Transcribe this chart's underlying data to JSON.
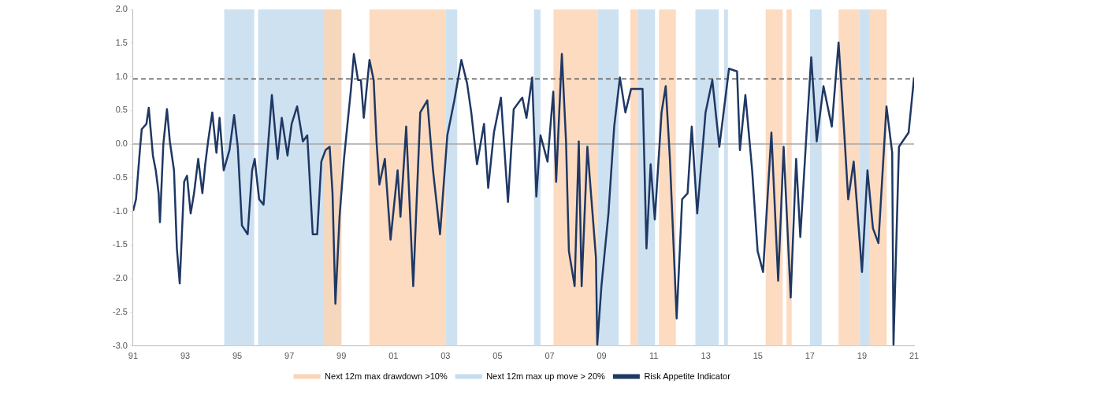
{
  "chart_data": {
    "type": "line",
    "legend": "bottom",
    "grid": false,
    "marker": "none",
    "line_style": "solid",
    "xlim": [
      1991,
      2021
    ],
    "ylim": [
      -3,
      2
    ],
    "xticks": [
      {
        "value": 1991,
        "label": "91"
      },
      {
        "value": 1993,
        "label": "93"
      },
      {
        "value": 1995,
        "label": "95"
      },
      {
        "value": 1997,
        "label": "97"
      },
      {
        "value": 1999,
        "label": "99"
      },
      {
        "value": 2001,
        "label": "01"
      },
      {
        "value": 2003,
        "label": "03"
      },
      {
        "value": 2005,
        "label": "05"
      },
      {
        "value": 2007,
        "label": "07"
      },
      {
        "value": 2009,
        "label": "09"
      },
      {
        "value": 2011,
        "label": "11"
      },
      {
        "value": 2013,
        "label": "13"
      },
      {
        "value": 2015,
        "label": "15"
      },
      {
        "value": 2017,
        "label": "17"
      },
      {
        "value": 2019,
        "label": "19"
      },
      {
        "value": 2021,
        "label": "21"
      }
    ],
    "yticks": [
      {
        "value": -3,
        "label": "-3.0"
      },
      {
        "value": -2.5,
        "label": "-2.5"
      },
      {
        "value": -2,
        "label": "-2.0"
      },
      {
        "value": -1.5,
        "label": "-1.5"
      },
      {
        "value": -1,
        "label": "-1.0"
      },
      {
        "value": -0.5,
        "label": "-0.5"
      },
      {
        "value": 0,
        "label": "0.0"
      },
      {
        "value": 0.5,
        "label": "0.5"
      },
      {
        "value": 1,
        "label": "1.0"
      },
      {
        "value": 1.5,
        "label": "1.5"
      },
      {
        "value": 2,
        "label": "2.0"
      }
    ],
    "bands": [
      {
        "axis": "x",
        "from": 2000.08,
        "to": 2003.0,
        "label": "Next 12m max drawdown >10%",
        "color": "#fbd5b5"
      },
      {
        "axis": "x",
        "from": 1994.5,
        "to": 1995.65,
        "label": "Next 12m max up move > 20%",
        "color": "#c5dcef"
      },
      {
        "axis": "x",
        "from": 1995.8,
        "to": 1999.0,
        "color": "#c5dcef"
      },
      {
        "axis": "x",
        "from": 1998.3,
        "to": 1999.0,
        "color": "#fbd5b5"
      },
      {
        "axis": "x",
        "from": 2003.0,
        "to": 2003.45,
        "color": "#c5dcef"
      },
      {
        "axis": "x",
        "from": 2006.4,
        "to": 2006.65,
        "color": "#c5dcef"
      },
      {
        "axis": "x",
        "from": 2007.15,
        "to": 2008.85,
        "color": "#fbd5b5"
      },
      {
        "axis": "x",
        "from": 2008.85,
        "to": 2009.65,
        "color": "#c5dcef"
      },
      {
        "axis": "x",
        "from": 2010.1,
        "to": 2010.4,
        "color": "#fbd5b5"
      },
      {
        "axis": "x",
        "from": 2010.4,
        "to": 2011.05,
        "color": "#c5dcef"
      },
      {
        "axis": "x",
        "from": 2011.2,
        "to": 2011.85,
        "color": "#fbd5b5"
      },
      {
        "axis": "x",
        "from": 2012.6,
        "to": 2013.5,
        "color": "#c5dcef"
      },
      {
        "axis": "x",
        "from": 2013.7,
        "to": 2013.85,
        "color": "#c5dcef"
      },
      {
        "axis": "x",
        "from": 2015.3,
        "to": 2015.95,
        "color": "#fbd5b5"
      },
      {
        "axis": "x",
        "from": 2016.1,
        "to": 2016.3,
        "color": "#fbd5b5"
      },
      {
        "axis": "x",
        "from": 2017.0,
        "to": 2017.45,
        "color": "#c5dcef"
      },
      {
        "axis": "x",
        "from": 2018.1,
        "to": 2018.9,
        "color": "#fbd5b5"
      },
      {
        "axis": "x",
        "from": 2018.9,
        "to": 2019.3,
        "color": "#c5dcef"
      },
      {
        "axis": "x",
        "from": 2019.3,
        "to": 2019.95,
        "color": "#fbd5b5"
      }
    ],
    "ref_lines": [
      {
        "axis": "y",
        "value": 0,
        "color": "#a6a6a6",
        "line_style": "solid"
      },
      {
        "axis": "y",
        "value": 0.97,
        "color": "#595959",
        "line_style": "dashed"
      }
    ],
    "series": [
      {
        "name": "Risk Appetite Indicator",
        "color": "#1f3864",
        "x": [
          1991.0,
          1991.11,
          1991.27,
          1991.33,
          1991.51,
          1991.6,
          1991.76,
          1991.87,
          1991.98,
          1992.03,
          1992.16,
          1992.3,
          1992.41,
          1992.57,
          1992.68,
          1992.79,
          1992.96,
          1993.07,
          1993.21,
          1993.34,
          1993.5,
          1993.66,
          1993.77,
          1993.88,
          1994.04,
          1994.2,
          1994.32,
          1994.48,
          1994.7,
          1994.88,
          1995.02,
          1995.18,
          1995.4,
          1995.57,
          1995.67,
          1995.84,
          1996.01,
          1996.33,
          1996.55,
          1996.71,
          1996.93,
          1997.09,
          1997.3,
          1997.52,
          1997.69,
          1997.9,
          1998.07,
          1998.23,
          1998.39,
          1998.55,
          1998.66,
          1998.77,
          1998.93,
          1999.1,
          1999.37,
          1999.48,
          1999.64,
          1999.75,
          1999.86,
          2000.08,
          2000.24,
          2000.35,
          2000.46,
          2000.67,
          2000.89,
          2001.16,
          2001.27,
          2001.49,
          2001.76,
          2002.03,
          2002.3,
          2002.52,
          2002.79,
          2003.07,
          2003.34,
          2003.61,
          2003.83,
          2003.99,
          2004.21,
          2004.48,
          2004.64,
          2004.86,
          2005.13,
          2005.4,
          2005.62,
          2005.95,
          2006.11,
          2006.33,
          2006.49,
          2006.65,
          2006.92,
          2007.14,
          2007.25,
          2007.47,
          2007.63,
          2007.74,
          2007.96,
          2008.12,
          2008.23,
          2008.45,
          2008.78,
          2008.83,
          2008.99,
          2009.26,
          2009.48,
          2009.7,
          2009.91,
          2010.13,
          2010.57,
          2010.72,
          2010.88,
          2011.04,
          2011.3,
          2011.46,
          2011.62,
          2011.88,
          2012.09,
          2012.3,
          2012.46,
          2012.67,
          2012.99,
          2013.25,
          2013.52,
          2013.89,
          2014.2,
          2014.31,
          2014.52,
          2014.78,
          2014.99,
          2015.2,
          2015.52,
          2015.78,
          2015.99,
          2016.26,
          2016.47,
          2016.63,
          2016.89,
          2017.05,
          2017.26,
          2017.52,
          2017.84,
          2018.1,
          2018.31,
          2018.47,
          2018.68,
          2019.0,
          2019.21,
          2019.42,
          2019.63,
          2019.94,
          2020.16,
          2020.21,
          2020.42,
          2020.79,
          2021.0
        ],
        "values": [
          -0.99,
          -0.82,
          -0.04,
          0.22,
          0.3,
          0.54,
          -0.17,
          -0.39,
          -0.73,
          -1.16,
          0.0,
          0.52,
          0.04,
          -0.39,
          -1.55,
          -2.07,
          -0.56,
          -0.47,
          -1.03,
          -0.73,
          -0.22,
          -0.73,
          -0.3,
          0.04,
          0.47,
          -0.13,
          0.39,
          -0.39,
          -0.09,
          0.43,
          -0.04,
          -1.21,
          -1.34,
          -0.39,
          -0.22,
          -0.82,
          -0.9,
          0.73,
          -0.22,
          0.39,
          -0.17,
          0.3,
          0.56,
          0.04,
          0.13,
          -1.34,
          -1.34,
          -0.26,
          -0.09,
          -0.04,
          -0.73,
          -2.37,
          -1.08,
          -0.22,
          0.82,
          1.34,
          0.95,
          0.95,
          0.39,
          1.25,
          0.95,
          0.04,
          -0.6,
          -0.22,
          -1.42,
          -0.39,
          -1.08,
          0.26,
          -2.11,
          0.47,
          0.65,
          -0.39,
          -1.34,
          0.13,
          0.65,
          1.25,
          0.9,
          0.47,
          -0.3,
          0.3,
          -0.65,
          0.17,
          0.69,
          -0.86,
          0.52,
          0.69,
          0.39,
          0.99,
          -0.78,
          0.13,
          -0.26,
          0.78,
          -0.56,
          1.34,
          0.04,
          -1.59,
          -2.11,
          0.04,
          -2.11,
          -0.04,
          -1.69,
          -2.98,
          -2.11,
          -1.03,
          0.26,
          0.99,
          0.47,
          0.82,
          0.82,
          -1.55,
          -0.3,
          -1.12,
          0.47,
          0.86,
          -0.22,
          -2.59,
          -0.82,
          -0.73,
          0.26,
          -1.03,
          0.47,
          0.95,
          -0.04,
          1.12,
          1.08,
          -0.09,
          0.73,
          -0.39,
          -1.59,
          -1.9,
          0.17,
          -2.03,
          -0.04,
          -2.28,
          -0.22,
          -1.38,
          0.3,
          1.29,
          0.04,
          0.86,
          0.26,
          1.51,
          0.22,
          -0.82,
          -0.26,
          -1.9,
          -0.39,
          -1.25,
          -1.47,
          0.56,
          -0.13,
          -2.98,
          -0.04,
          0.17,
          0.99
        ]
      }
    ]
  }
}
